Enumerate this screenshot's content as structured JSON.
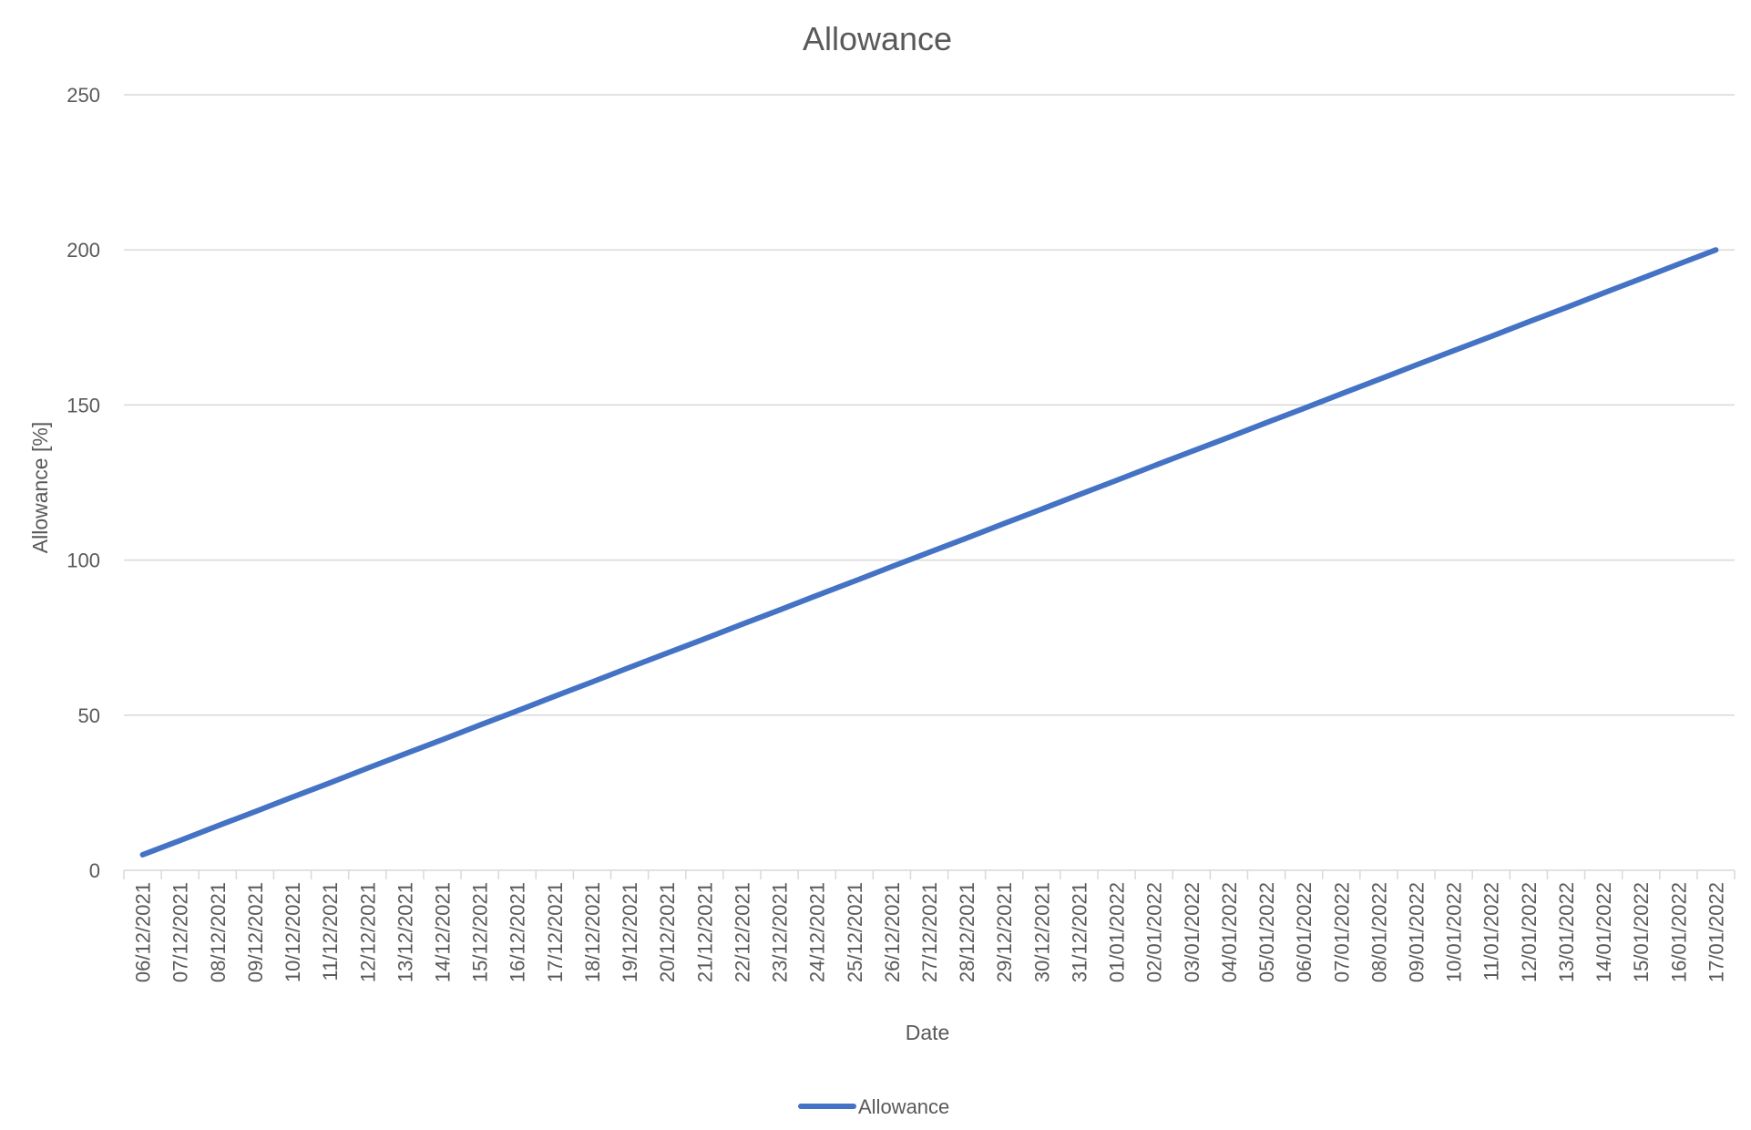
{
  "chart_data": {
    "type": "line",
    "title": "Allowance",
    "xlabel": "Date",
    "ylabel": "Allowance [%]",
    "ylim": [
      0,
      250
    ],
    "yticks": [
      0,
      50,
      100,
      150,
      200,
      250
    ],
    "grid": true,
    "legend_position": "bottom",
    "categories": [
      "06/12/2021",
      "07/12/2021",
      "08/12/2021",
      "09/12/2021",
      "10/12/2021",
      "11/12/2021",
      "12/12/2021",
      "13/12/2021",
      "14/12/2021",
      "15/12/2021",
      "16/12/2021",
      "17/12/2021",
      "18/12/2021",
      "19/12/2021",
      "20/12/2021",
      "21/12/2021",
      "22/12/2021",
      "23/12/2021",
      "24/12/2021",
      "25/12/2021",
      "26/12/2021",
      "27/12/2021",
      "28/12/2021",
      "29/12/2021",
      "30/12/2021",
      "31/12/2021",
      "01/01/2022",
      "02/01/2022",
      "03/01/2022",
      "04/01/2022",
      "05/01/2022",
      "06/01/2022",
      "07/01/2022",
      "08/01/2022",
      "09/01/2022",
      "10/01/2022",
      "11/01/2022",
      "12/01/2022",
      "13/01/2022",
      "14/01/2022",
      "15/01/2022",
      "16/01/2022",
      "17/01/2022"
    ],
    "series": [
      {
        "name": "Allowance",
        "color": "#4472C4",
        "values": [
          5,
          9.6,
          14.3,
          18.9,
          23.6,
          28.2,
          32.9,
          37.5,
          42.1,
          46.8,
          51.4,
          56.1,
          60.7,
          65.4,
          70,
          74.6,
          79.3,
          83.9,
          88.6,
          93.2,
          97.9,
          102.5,
          107.1,
          111.8,
          116.4,
          121.1,
          125.7,
          130.4,
          135,
          139.6,
          144.3,
          148.9,
          153.6,
          158.2,
          162.9,
          167.5,
          172.1,
          176.8,
          181.4,
          186.1,
          190.7,
          195.4,
          200
        ]
      }
    ]
  }
}
